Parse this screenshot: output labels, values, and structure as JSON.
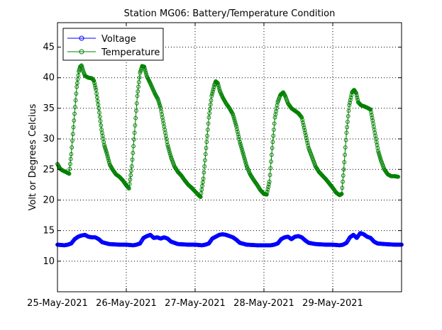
{
  "chart_data": {
    "type": "line",
    "title": "Station MG06: Battery/Temperature Condition",
    "xlabel": "",
    "ylabel": "Volt or Degrees Celcius",
    "ylim": [
      5,
      49
    ],
    "xlim_days": [
      0,
      5
    ],
    "grid": true,
    "legend_position": "top-left",
    "y_ticks": [
      10,
      15,
      20,
      25,
      30,
      35,
      40,
      45
    ],
    "x_ticks": [
      {
        "day": 0,
        "label": "25-May-2021"
      },
      {
        "day": 1,
        "label": "26-May-2021"
      },
      {
        "day": 2,
        "label": "27-May-2021"
      },
      {
        "day": 3,
        "label": "28-May-2021"
      },
      {
        "day": 4,
        "label": "29-May-2021"
      }
    ],
    "series": [
      {
        "name": "Voltage",
        "color": "#0000ff",
        "marker": "circle",
        "points": [
          [
            0.0,
            12.7
          ],
          [
            0.1,
            12.6
          ],
          [
            0.15,
            12.7
          ],
          [
            0.2,
            12.9
          ],
          [
            0.25,
            13.6
          ],
          [
            0.3,
            14.0
          ],
          [
            0.35,
            14.2
          ],
          [
            0.4,
            14.3
          ],
          [
            0.45,
            14.0
          ],
          [
            0.5,
            13.9
          ],
          [
            0.55,
            13.9
          ],
          [
            0.6,
            13.6
          ],
          [
            0.65,
            13.1
          ],
          [
            0.75,
            12.8
          ],
          [
            0.9,
            12.7
          ],
          [
            1.0,
            12.7
          ],
          [
            1.1,
            12.6
          ],
          [
            1.15,
            12.7
          ],
          [
            1.2,
            12.9
          ],
          [
            1.25,
            13.8
          ],
          [
            1.3,
            14.1
          ],
          [
            1.35,
            14.3
          ],
          [
            1.4,
            13.8
          ],
          [
            1.45,
            13.9
          ],
          [
            1.5,
            13.7
          ],
          [
            1.55,
            13.9
          ],
          [
            1.6,
            13.7
          ],
          [
            1.65,
            13.2
          ],
          [
            1.75,
            12.8
          ],
          [
            1.9,
            12.7
          ],
          [
            2.0,
            12.7
          ],
          [
            2.1,
            12.6
          ],
          [
            2.15,
            12.7
          ],
          [
            2.2,
            12.9
          ],
          [
            2.25,
            13.7
          ],
          [
            2.3,
            14.0
          ],
          [
            2.35,
            14.3
          ],
          [
            2.4,
            14.4
          ],
          [
            2.45,
            14.3
          ],
          [
            2.5,
            14.1
          ],
          [
            2.55,
            13.9
          ],
          [
            2.6,
            13.5
          ],
          [
            2.65,
            13.0
          ],
          [
            2.75,
            12.7
          ],
          [
            2.9,
            12.6
          ],
          [
            3.0,
            12.6
          ],
          [
            3.1,
            12.6
          ],
          [
            3.15,
            12.7
          ],
          [
            3.2,
            12.9
          ],
          [
            3.25,
            13.6
          ],
          [
            3.3,
            13.9
          ],
          [
            3.35,
            14.0
          ],
          [
            3.4,
            13.6
          ],
          [
            3.45,
            14.0
          ],
          [
            3.5,
            14.1
          ],
          [
            3.55,
            13.9
          ],
          [
            3.6,
            13.4
          ],
          [
            3.65,
            13.0
          ],
          [
            3.75,
            12.8
          ],
          [
            3.9,
            12.7
          ],
          [
            4.0,
            12.7
          ],
          [
            4.1,
            12.6
          ],
          [
            4.15,
            12.7
          ],
          [
            4.2,
            13.0
          ],
          [
            4.25,
            13.9
          ],
          [
            4.3,
            14.3
          ],
          [
            4.35,
            13.8
          ],
          [
            4.4,
            14.6
          ],
          [
            4.45,
            14.4
          ],
          [
            4.5,
            14.0
          ],
          [
            4.55,
            13.8
          ],
          [
            4.6,
            13.2
          ],
          [
            4.65,
            12.9
          ],
          [
            4.75,
            12.8
          ],
          [
            4.9,
            12.7
          ],
          [
            5.0,
            12.7
          ]
        ]
      },
      {
        "name": "Temperature",
        "color": "#008000",
        "marker": "circle",
        "points": [
          [
            0.0,
            25.9
          ],
          [
            0.04,
            25.1
          ],
          [
            0.08,
            24.8
          ],
          [
            0.12,
            24.6
          ],
          [
            0.17,
            24.3
          ],
          [
            0.2,
            27.5
          ],
          [
            0.24,
            33.0
          ],
          [
            0.28,
            38.5
          ],
          [
            0.31,
            41.0
          ],
          [
            0.33,
            41.8
          ],
          [
            0.35,
            42.0
          ],
          [
            0.37,
            41.2
          ],
          [
            0.4,
            40.3
          ],
          [
            0.45,
            40.0
          ],
          [
            0.5,
            39.9
          ],
          [
            0.53,
            39.5
          ],
          [
            0.56,
            38.0
          ],
          [
            0.6,
            35.0
          ],
          [
            0.64,
            31.5
          ],
          [
            0.68,
            29.0
          ],
          [
            0.72,
            27.5
          ],
          [
            0.76,
            25.8
          ],
          [
            0.8,
            25.0
          ],
          [
            0.85,
            24.2
          ],
          [
            0.9,
            23.8
          ],
          [
            0.95,
            23.2
          ],
          [
            1.0,
            22.4
          ],
          [
            1.04,
            21.9
          ],
          [
            1.08,
            25.5
          ],
          [
            1.12,
            31.0
          ],
          [
            1.16,
            37.0
          ],
          [
            1.2,
            40.8
          ],
          [
            1.23,
            41.9
          ],
          [
            1.26,
            41.8
          ],
          [
            1.3,
            40.2
          ],
          [
            1.34,
            39.3
          ],
          [
            1.38,
            38.3
          ],
          [
            1.42,
            37.3
          ],
          [
            1.46,
            36.5
          ],
          [
            1.5,
            35.0
          ],
          [
            1.55,
            32.0
          ],
          [
            1.6,
            29.0
          ],
          [
            1.65,
            27.0
          ],
          [
            1.7,
            25.5
          ],
          [
            1.75,
            24.6
          ],
          [
            1.8,
            24.0
          ],
          [
            1.85,
            23.2
          ],
          [
            1.9,
            22.5
          ],
          [
            1.95,
            22.0
          ],
          [
            2.0,
            21.4
          ],
          [
            2.05,
            20.8
          ],
          [
            2.08,
            20.5
          ],
          [
            2.12,
            23.5
          ],
          [
            2.16,
            28.5
          ],
          [
            2.2,
            33.5
          ],
          [
            2.24,
            37.0
          ],
          [
            2.28,
            38.8
          ],
          [
            2.3,
            39.4
          ],
          [
            2.33,
            39.1
          ],
          [
            2.36,
            37.8
          ],
          [
            2.4,
            36.8
          ],
          [
            2.45,
            35.8
          ],
          [
            2.5,
            35.0
          ],
          [
            2.55,
            34.0
          ],
          [
            2.6,
            32.0
          ],
          [
            2.65,
            29.5
          ],
          [
            2.7,
            27.5
          ],
          [
            2.75,
            25.5
          ],
          [
            2.8,
            24.2
          ],
          [
            2.85,
            23.3
          ],
          [
            2.9,
            22.5
          ],
          [
            2.95,
            21.6
          ],
          [
            3.0,
            21.0
          ],
          [
            3.04,
            20.9
          ],
          [
            3.08,
            23.0
          ],
          [
            3.12,
            28.5
          ],
          [
            3.16,
            33.5
          ],
          [
            3.2,
            36.0
          ],
          [
            3.24,
            37.2
          ],
          [
            3.28,
            37.6
          ],
          [
            3.31,
            37.0
          ],
          [
            3.35,
            35.8
          ],
          [
            3.4,
            35.0
          ],
          [
            3.45,
            34.6
          ],
          [
            3.5,
            34.2
          ],
          [
            3.55,
            33.5
          ],
          [
            3.6,
            31.0
          ],
          [
            3.65,
            28.5
          ],
          [
            3.7,
            27.0
          ],
          [
            3.75,
            25.5
          ],
          [
            3.8,
            24.6
          ],
          [
            3.85,
            24.0
          ],
          [
            3.9,
            23.4
          ],
          [
            3.95,
            22.7
          ],
          [
            4.0,
            22.0
          ],
          [
            4.05,
            21.2
          ],
          [
            4.1,
            20.8
          ],
          [
            4.13,
            21.0
          ],
          [
            4.16,
            25.0
          ],
          [
            4.2,
            31.0
          ],
          [
            4.24,
            35.5
          ],
          [
            4.28,
            37.6
          ],
          [
            4.31,
            38.0
          ],
          [
            4.34,
            37.5
          ],
          [
            4.37,
            36.0
          ],
          [
            4.41,
            35.5
          ],
          [
            4.46,
            35.3
          ],
          [
            4.5,
            35.1
          ],
          [
            4.55,
            34.8
          ],
          [
            4.58,
            33.0
          ],
          [
            4.62,
            30.5
          ],
          [
            4.66,
            28.0
          ],
          [
            4.7,
            26.5
          ],
          [
            4.75,
            25.0
          ],
          [
            4.8,
            24.2
          ],
          [
            4.85,
            23.9
          ],
          [
            4.9,
            23.9
          ],
          [
            4.95,
            23.8
          ]
        ]
      }
    ]
  }
}
